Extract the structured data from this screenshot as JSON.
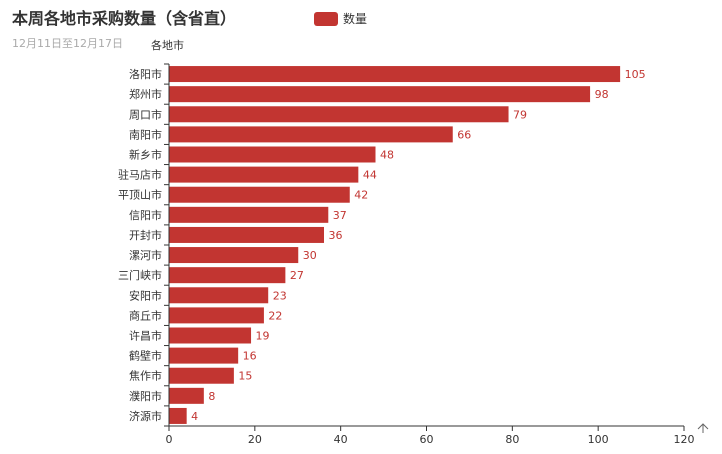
{
  "chart_data": {
    "type": "bar",
    "orientation": "horizontal",
    "title": "本周各地市采购数量（含省直）",
    "subtitle": "12月11日至12月17日",
    "ylabel": "各地市",
    "xlabel": "",
    "legend": {
      "position": "top-center"
    },
    "categories": [
      "洛阳市",
      "郑州市",
      "周口市",
      "南阳市",
      "新乡市",
      "驻马店市",
      "平顶山市",
      "信阳市",
      "开封市",
      "漯河市",
      "三门峡市",
      "安阳市",
      "商丘市",
      "许昌市",
      "鹤壁市",
      "焦作市",
      "濮阳市",
      "济源市"
    ],
    "series": [
      {
        "name": "数量",
        "color": "#c23531",
        "values": [
          105,
          98,
          79,
          66,
          48,
          44,
          42,
          37,
          36,
          30,
          27,
          23,
          22,
          19,
          16,
          15,
          8,
          4
        ]
      }
    ],
    "xlim": [
      0,
      120
    ],
    "xticks": [
      0,
      20,
      40,
      60,
      80,
      100,
      120
    ],
    "grid": false,
    "toolbox_icon": "arrow-up-icon",
    "colors": {
      "bar": "#c23531",
      "label": "#c23531",
      "axis": "#333333",
      "title": "#333333",
      "subtitle": "#aaaaaa"
    }
  }
}
